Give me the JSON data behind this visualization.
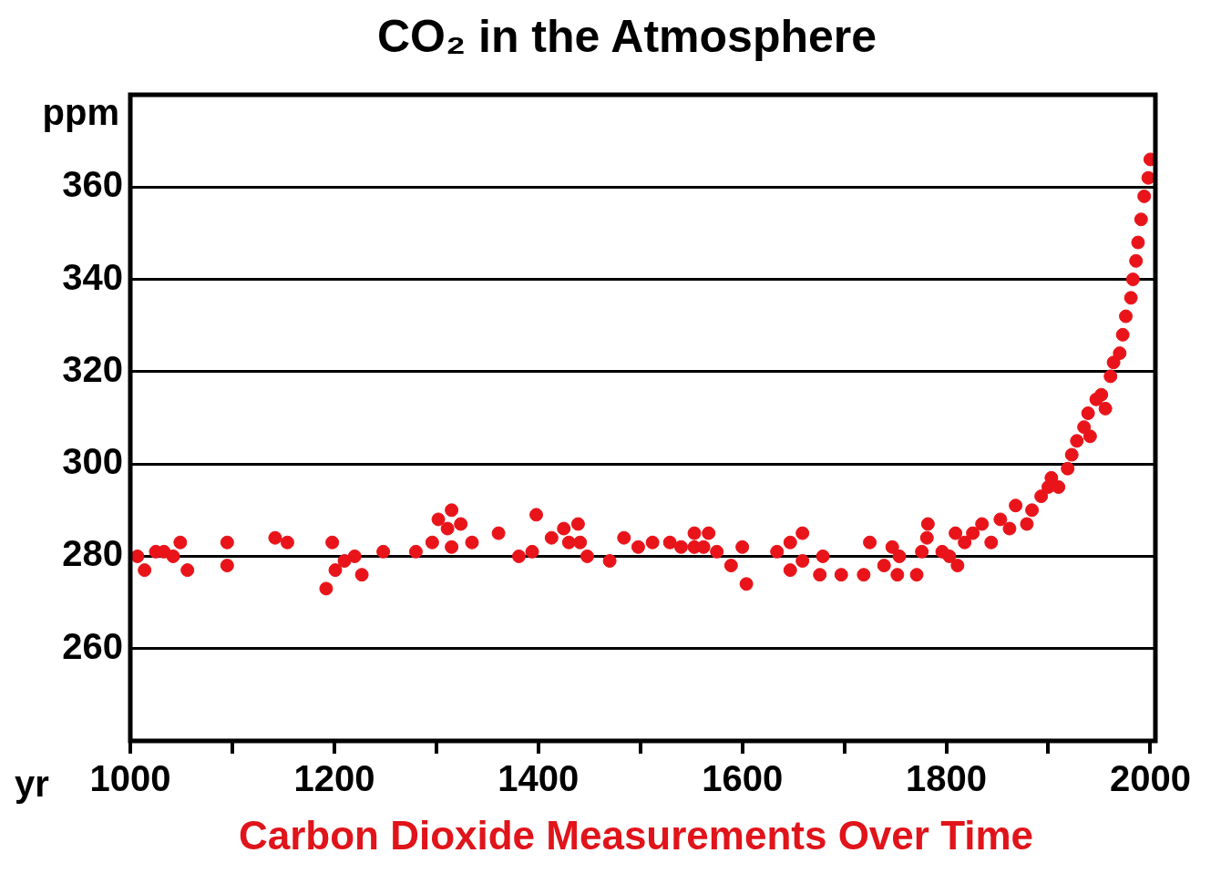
{
  "chart_data": {
    "type": "scatter",
    "title": "CO₂ in the Atmosphere",
    "xlabel": "yr",
    "ylabel": "ppm",
    "annotations": [
      "Carbon Dioxide Measurements Over Time"
    ],
    "xlim": [
      1000,
      2005
    ],
    "xticks": [
      1000,
      {
        "value": 1100,
        "label": null
      },
      1200,
      {
        "value": 1300,
        "label": null
      },
      1400,
      {
        "value": 1500,
        "label": null
      },
      1600,
      {
        "value": 1700,
        "label": null
      },
      1800,
      {
        "value": 1900,
        "label": null
      },
      2000
    ],
    "ylim": [
      240,
      380
    ],
    "yticks": [
      260,
      280,
      300,
      320,
      340,
      360
    ],
    "grid": "y",
    "marker": "circle",
    "legend": false,
    "series": [
      {
        "color": "#e8141a",
        "x": [
          1007,
          1014,
          1025,
          1033,
          1042,
          1049,
          1056,
          1095,
          1095,
          1142,
          1154,
          1192,
          1198,
          1201,
          1210,
          1220,
          1227,
          1248,
          1280,
          1296,
          1302,
          1311,
          1315,
          1315,
          1324,
          1335,
          1361,
          1381,
          1394,
          1398,
          1413,
          1425,
          1430,
          1439,
          1441,
          1448,
          1470,
          1484,
          1498,
          1512,
          1529,
          1540,
          1553,
          1567,
          1553,
          1562,
          1575,
          1589,
          1600,
          1604,
          1634,
          1647,
          1647,
          1659,
          1659,
          1676,
          1679,
          1697,
          1719,
          1725,
          1739,
          1747,
          1752,
          1754,
          1771,
          1776,
          1781,
          1782,
          1796,
          1803,
          1809,
          1811,
          1818,
          1826,
          1835,
          1844,
          1853,
          1862,
          1868,
          1879,
          1884,
          1893,
          1900,
          1903,
          1910,
          1919,
          1923,
          1928,
          1935,
          1939,
          1941,
          1947,
          1952,
          1956,
          1961,
          1964,
          1970,
          1973,
          1976,
          1981,
          1983,
          1986,
          1988,
          1991,
          1994,
          1998,
          2000
        ],
        "values": [
          280,
          277,
          281,
          281,
          280,
          283,
          277,
          283,
          278,
          284,
          283,
          273,
          283,
          277,
          279,
          280,
          276,
          281,
          281,
          283,
          288,
          286,
          290,
          282,
          287,
          283,
          285,
          280,
          281,
          289,
          284,
          286,
          283,
          287,
          283,
          280,
          279,
          284,
          282,
          283,
          283,
          282,
          285,
          285,
          282,
          282,
          281,
          278,
          282,
          274,
          281,
          283,
          277,
          285,
          279,
          276,
          280,
          276,
          276,
          283,
          278,
          282,
          276,
          280,
          276,
          281,
          284,
          287,
          281,
          280,
          285,
          278,
          283,
          285,
          287,
          283,
          288,
          286,
          291,
          287,
          290,
          293,
          295,
          297,
          295,
          299,
          302,
          305,
          308,
          311,
          306,
          314,
          315,
          312,
          319,
          322,
          324,
          328,
          332,
          336,
          340,
          344,
          348,
          353,
          358,
          362,
          366
        ]
      }
    ]
  }
}
